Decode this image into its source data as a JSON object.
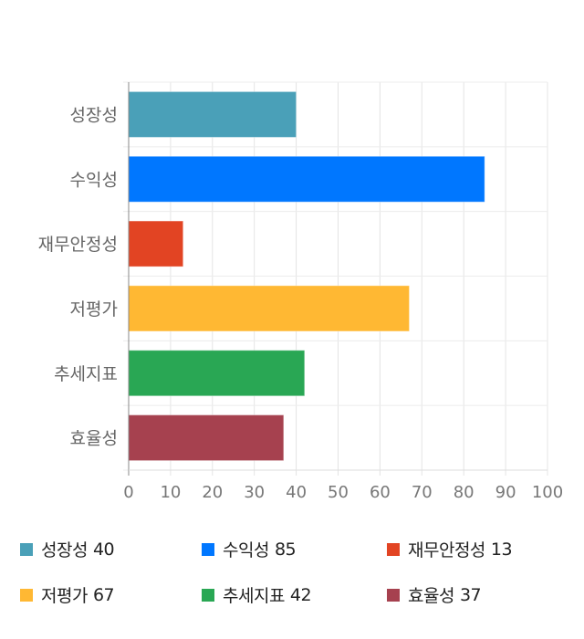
{
  "chart_data": {
    "type": "bar",
    "orientation": "horizontal",
    "categories": [
      "성장성",
      "수익성",
      "재무안정성",
      "저평가",
      "추세지표",
      "효율성"
    ],
    "values": [
      40,
      85,
      13,
      67,
      42,
      37
    ],
    "colors": [
      "#4aa0b8",
      "#0077ff",
      "#e24423",
      "#ffb833",
      "#29a754",
      "#a6414f"
    ],
    "xlim": [
      0,
      100
    ],
    "xticks": [
      0,
      10,
      20,
      30,
      40,
      50,
      60,
      70,
      80,
      90,
      100
    ],
    "grid": true,
    "legend_placement": "bottom",
    "title": "",
    "xlabel": "",
    "ylabel": ""
  },
  "legend": [
    {
      "label": "성장성",
      "value": "40"
    },
    {
      "label": "수익성",
      "value": "85"
    },
    {
      "label": "재무안정성",
      "value": "13"
    },
    {
      "label": "저평가",
      "value": "67"
    },
    {
      "label": "추세지표",
      "value": "42"
    },
    {
      "label": "효율성",
      "value": "37"
    }
  ]
}
